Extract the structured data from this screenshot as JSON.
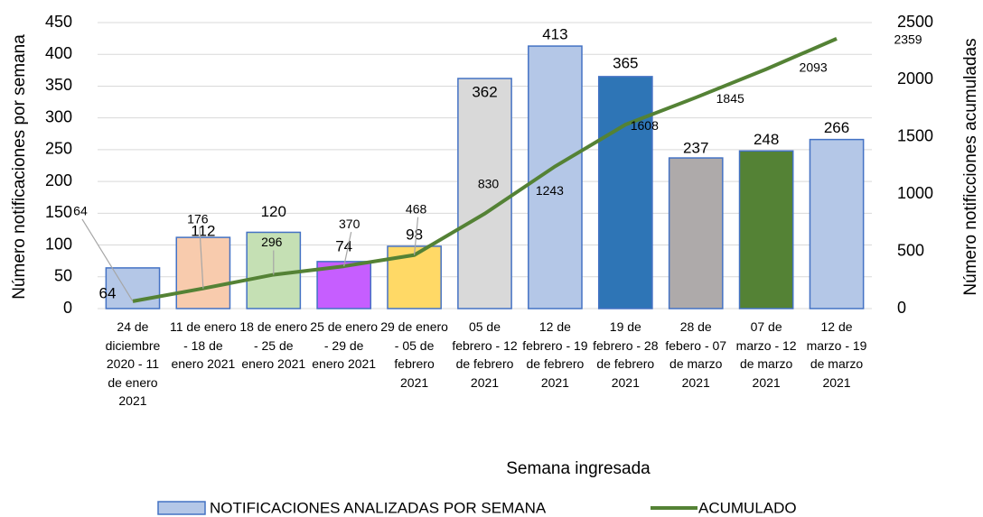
{
  "chart_data": {
    "type": "bar",
    "categories": [
      "24 de diciembre 2020 - 11 de enero 2021",
      "11 de enero - 18 de enero 2021",
      "18 de enero - 25 de enero 2021",
      "25 de enero - 29 de enero 2021",
      "29 de enero - 05 de febrero 2021",
      "05 de febrero - 12 de febrero 2021",
      "12 de febrero - 19 de febrero 2021",
      "19 de febrero - 28 de febrero 2021",
      "28 de febero - 07 de marzo 2021",
      "07 de marzo - 12 de marzo 2021",
      "12 de marzo - 19 de marzo 2021"
    ],
    "series": [
      {
        "name": "NOTIFICACIONES ANALIZADAS POR SEMANA",
        "type": "bar",
        "color": "#b4c7e7",
        "colors": [
          "#b4c7e7",
          "#f8cbad",
          "#c5e0b4",
          "#c65eff",
          "#ffd966",
          "#d9d9d9",
          "#b4c7e7",
          "#2e75b6",
          "#aeaaaa",
          "#548235",
          "#b4c7e7"
        ],
        "values": [
          64,
          112,
          120,
          74,
          98,
          362,
          413,
          365,
          237,
          248,
          266
        ]
      },
      {
        "name": "ACUMULADO",
        "type": "line",
        "axis": "y2",
        "color": "#548235",
        "values": [
          64,
          176,
          296,
          370,
          468,
          830,
          1243,
          1608,
          1845,
          2093,
          2359
        ]
      }
    ],
    "xlabel": "Semana ingresada",
    "ylabel": "Número notificaciones por semana",
    "y2label": "Número notificciones acumuladas",
    "ylim": [
      0,
      450
    ],
    "yticks": [
      0,
      50,
      100,
      150,
      200,
      250,
      300,
      350,
      400,
      450
    ],
    "y2lim": [
      0,
      2500
    ],
    "y2ticks": [
      0,
      500,
      1000,
      1500,
      2000,
      2500
    ],
    "grid": true,
    "legend": "bottom"
  }
}
